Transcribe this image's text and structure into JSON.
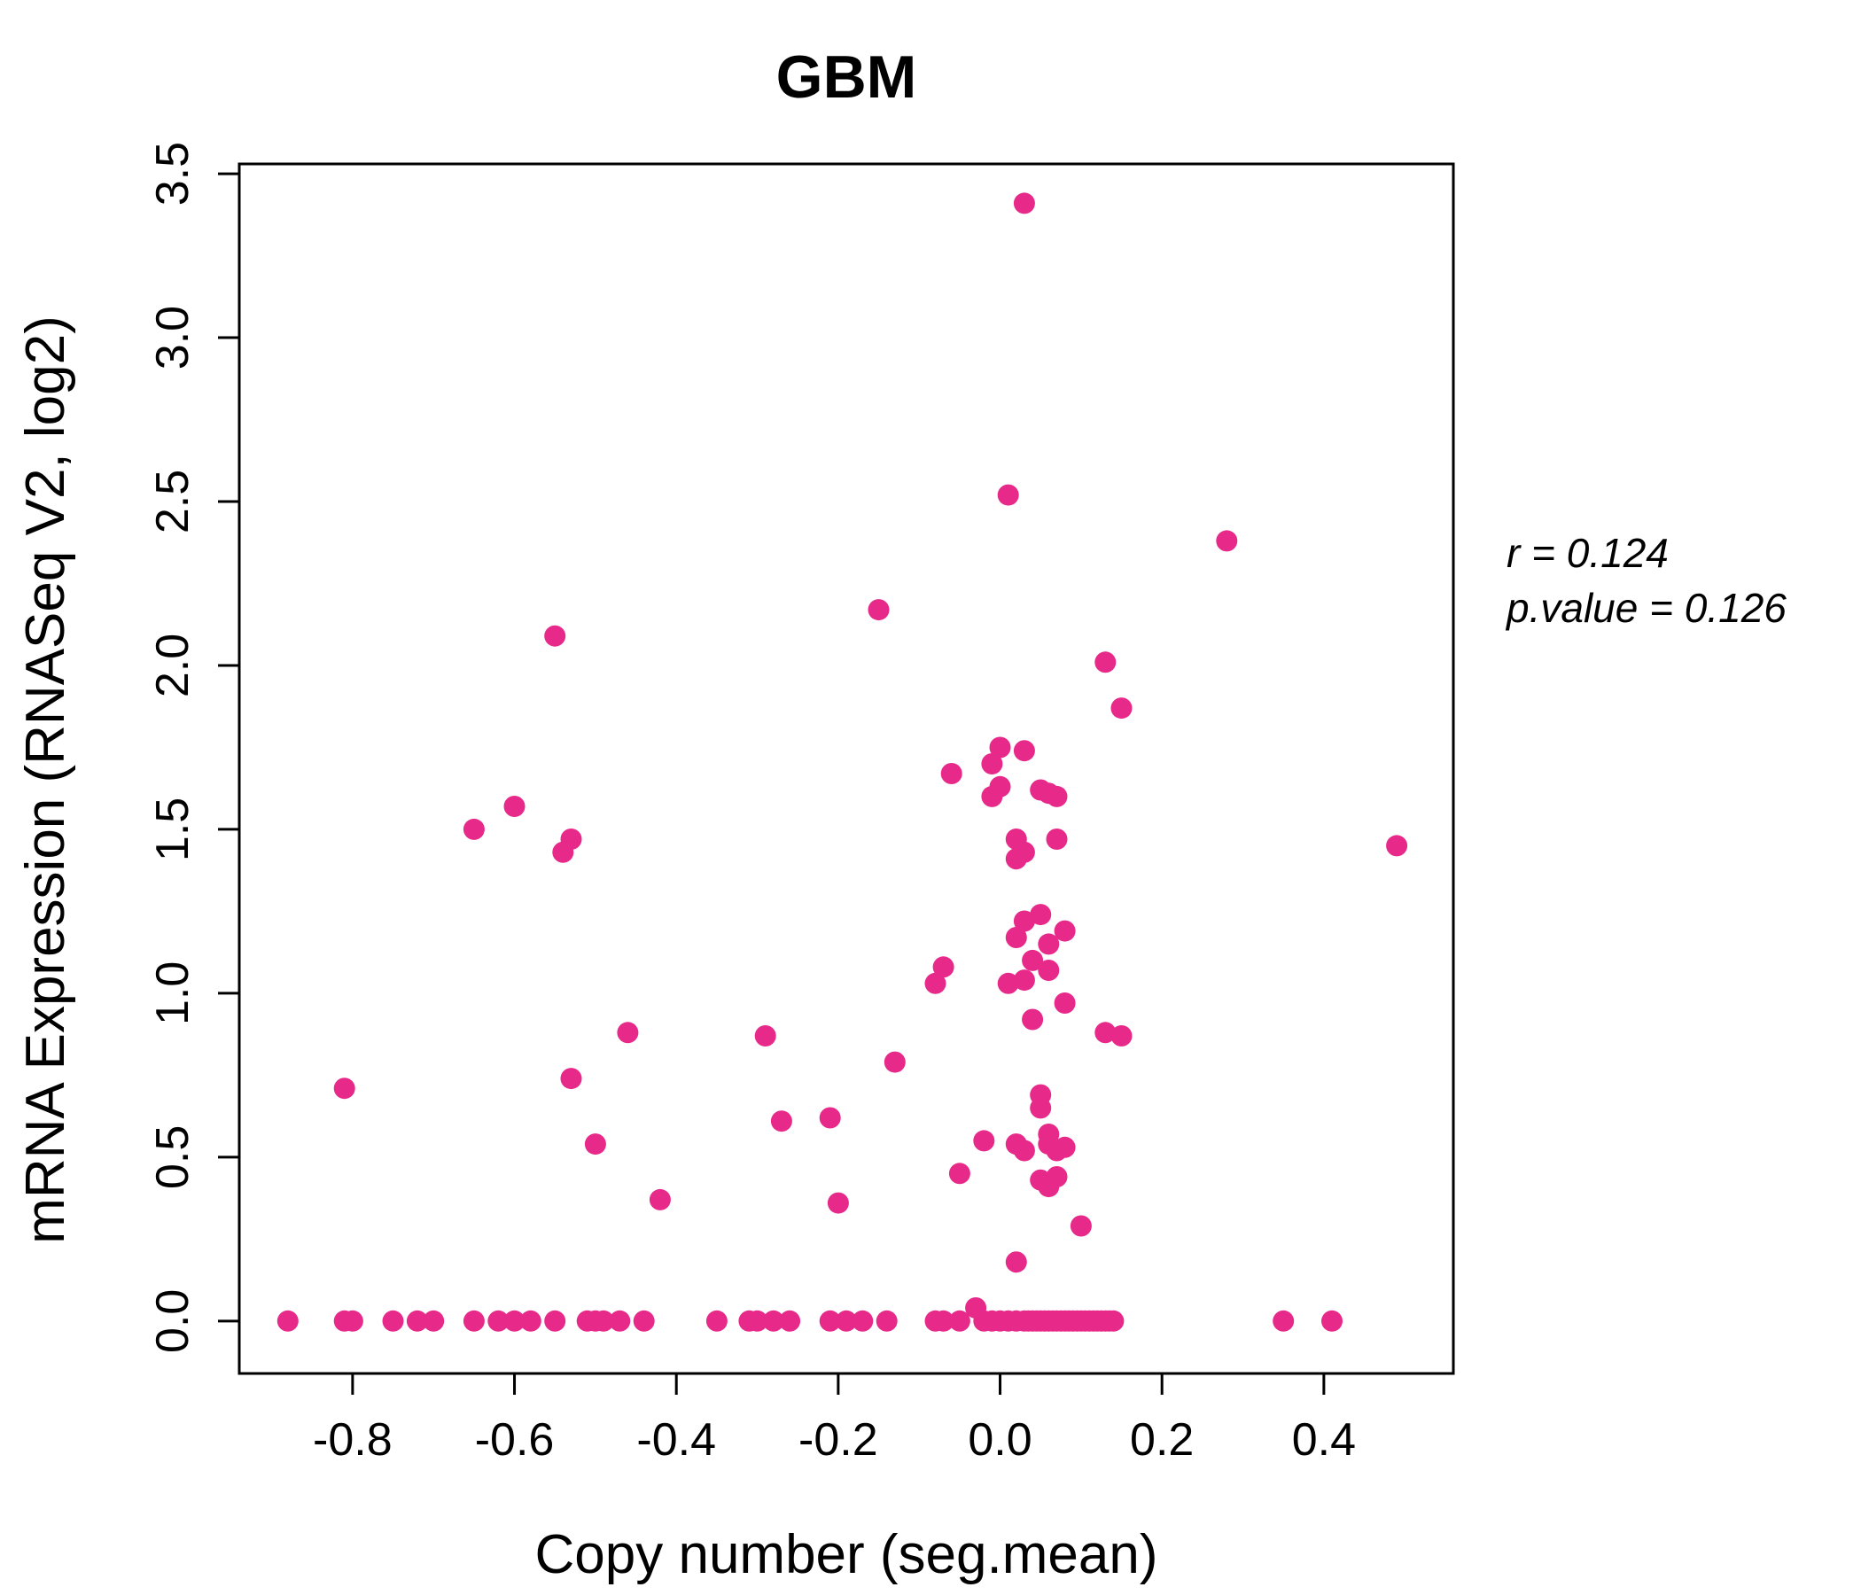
{
  "page": {
    "background": "#FFFFFF"
  },
  "chart_data": {
    "type": "scatter",
    "title": "GBM",
    "xlabel": "Copy number (seg.mean)",
    "ylabel": "mRNA Expression (RNASeq V2, log2)",
    "annotation": {
      "r_label": "r = 0.124",
      "p_label": "p.value = 0.126"
    },
    "colors": {
      "point": "#E7298A",
      "title": "#E7298A",
      "axis": "#000000"
    },
    "xlim": [
      -0.94,
      0.56
    ],
    "ylim": [
      -0.16,
      3.53
    ],
    "xticks": [
      -0.8,
      -0.6,
      -0.4,
      -0.2,
      0.0,
      0.2,
      0.4
    ],
    "yticks": [
      0.0,
      0.5,
      1.0,
      1.5,
      2.0,
      2.5,
      3.0,
      3.5
    ],
    "grid": false,
    "legend": "none",
    "points": [
      [
        0.03,
        3.41
      ],
      [
        0.01,
        2.52
      ],
      [
        0.28,
        2.38
      ],
      [
        -0.15,
        2.17
      ],
      [
        -0.55,
        2.09
      ],
      [
        0.13,
        2.01
      ],
      [
        0.15,
        1.87
      ],
      [
        0.0,
        1.75
      ],
      [
        0.03,
        1.74
      ],
      [
        -0.01,
        1.7
      ],
      [
        -0.06,
        1.67
      ],
      [
        0.0,
        1.63
      ],
      [
        -0.01,
        1.6
      ],
      [
        0.05,
        1.62
      ],
      [
        0.06,
        1.61
      ],
      [
        0.07,
        1.6
      ],
      [
        -0.6,
        1.57
      ],
      [
        -0.65,
        1.5
      ],
      [
        -0.53,
        1.47
      ],
      [
        -0.54,
        1.43
      ],
      [
        0.49,
        1.45
      ],
      [
        0.02,
        1.47
      ],
      [
        0.07,
        1.47
      ],
      [
        0.03,
        1.43
      ],
      [
        0.02,
        1.41
      ],
      [
        0.05,
        1.24
      ],
      [
        0.03,
        1.22
      ],
      [
        0.08,
        1.19
      ],
      [
        0.02,
        1.17
      ],
      [
        0.06,
        1.15
      ],
      [
        0.04,
        1.1
      ],
      [
        0.06,
        1.07
      ],
      [
        -0.07,
        1.08
      ],
      [
        -0.08,
        1.03
      ],
      [
        0.01,
        1.03
      ],
      [
        0.03,
        1.04
      ],
      [
        0.08,
        0.97
      ],
      [
        0.04,
        0.92
      ],
      [
        -0.46,
        0.88
      ],
      [
        -0.29,
        0.87
      ],
      [
        0.13,
        0.88
      ],
      [
        0.15,
        0.87
      ],
      [
        -0.13,
        0.79
      ],
      [
        -0.53,
        0.74
      ],
      [
        -0.81,
        0.71
      ],
      [
        0.05,
        0.69
      ],
      [
        0.05,
        0.65
      ],
      [
        -0.27,
        0.61
      ],
      [
        -0.21,
        0.62
      ],
      [
        -0.5,
        0.54
      ],
      [
        -0.02,
        0.55
      ],
      [
        0.02,
        0.54
      ],
      [
        0.03,
        0.52
      ],
      [
        0.06,
        0.57
      ],
      [
        0.06,
        0.54
      ],
      [
        0.07,
        0.52
      ],
      [
        0.08,
        0.53
      ],
      [
        -0.05,
        0.45
      ],
      [
        0.05,
        0.43
      ],
      [
        0.06,
        0.41
      ],
      [
        0.07,
        0.44
      ],
      [
        -0.42,
        0.37
      ],
      [
        -0.2,
        0.36
      ],
      [
        0.1,
        0.29
      ],
      [
        0.02,
        0.18
      ],
      [
        -0.03,
        0.04
      ],
      [
        -0.88,
        0
      ],
      [
        -0.81,
        0
      ],
      [
        -0.8,
        0
      ],
      [
        -0.75,
        0
      ],
      [
        -0.72,
        0
      ],
      [
        -0.7,
        0
      ],
      [
        -0.65,
        0
      ],
      [
        -0.62,
        0
      ],
      [
        -0.6,
        0
      ],
      [
        -0.58,
        0
      ],
      [
        -0.55,
        0
      ],
      [
        -0.51,
        0
      ],
      [
        -0.5,
        0
      ],
      [
        -0.49,
        0
      ],
      [
        -0.47,
        0
      ],
      [
        -0.44,
        0
      ],
      [
        -0.35,
        0
      ],
      [
        -0.31,
        0
      ],
      [
        -0.3,
        0
      ],
      [
        -0.28,
        0
      ],
      [
        -0.26,
        0
      ],
      [
        -0.21,
        0
      ],
      [
        -0.19,
        0
      ],
      [
        -0.17,
        0
      ],
      [
        -0.14,
        0
      ],
      [
        -0.08,
        0
      ],
      [
        -0.07,
        0
      ],
      [
        -0.05,
        0
      ],
      [
        -0.02,
        0
      ],
      [
        -0.01,
        0
      ],
      [
        0.0,
        0
      ],
      [
        0.01,
        0
      ],
      [
        0.02,
        0
      ],
      [
        0.03,
        0
      ],
      [
        0.035,
        0
      ],
      [
        0.04,
        0
      ],
      [
        0.045,
        0
      ],
      [
        0.05,
        0
      ],
      [
        0.055,
        0
      ],
      [
        0.06,
        0
      ],
      [
        0.065,
        0
      ],
      [
        0.07,
        0
      ],
      [
        0.075,
        0
      ],
      [
        0.08,
        0
      ],
      [
        0.085,
        0
      ],
      [
        0.09,
        0
      ],
      [
        0.095,
        0
      ],
      [
        0.1,
        0
      ],
      [
        0.105,
        0
      ],
      [
        0.11,
        0
      ],
      [
        0.115,
        0
      ],
      [
        0.12,
        0
      ],
      [
        0.125,
        0
      ],
      [
        0.13,
        0
      ],
      [
        0.135,
        0
      ],
      [
        0.14,
        0
      ],
      [
        0.35,
        0
      ],
      [
        0.41,
        0
      ]
    ]
  }
}
